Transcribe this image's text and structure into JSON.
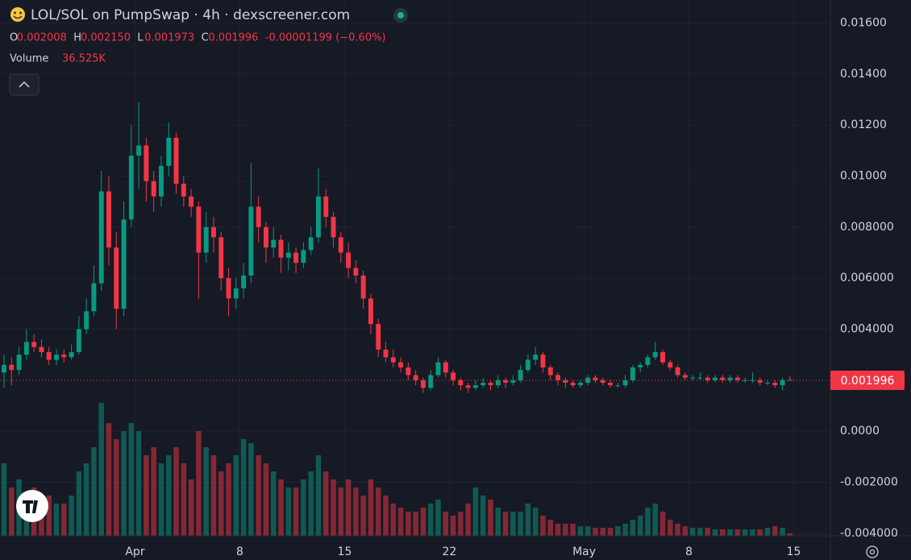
{
  "chart_data": {
    "type": "candlestick",
    "title": "LOL/SOL on PumpSwap · 4h · dexscreener.com",
    "ohlc_letters": [
      "O",
      "H",
      "L",
      "C"
    ],
    "ohlc_labels": [
      "0.002008",
      "0.002150",
      "0.001973",
      "0.001996"
    ],
    "change_label": "-0.00001199 (−0.60%)",
    "volume_title": "Volume",
    "volume_label": "36.525K",
    "up_color": "#089981",
    "down_color": "#f23645",
    "ylim": [
      -0.0041,
      0.0169
    ],
    "yticks": [
      {
        "value": 0.016,
        "label": "0.01600"
      },
      {
        "value": 0.014,
        "label": "0.01400"
      },
      {
        "value": 0.012,
        "label": "0.01200"
      },
      {
        "value": 0.01,
        "label": "0.01000"
      },
      {
        "value": 0.008,
        "label": "0.008000"
      },
      {
        "value": 0.006,
        "label": "0.006000"
      },
      {
        "value": 0.004,
        "label": "0.004000"
      },
      {
        "value": 0,
        "label": "0.0000"
      },
      {
        "value": -0.002,
        "label": "-0.002000"
      },
      {
        "value": -0.004,
        "label": "-0.004000"
      }
    ],
    "xlim": [
      -0.54,
      110.4
    ],
    "xticks": [
      {
        "value": 17.5,
        "label": "Apr"
      },
      {
        "value": 31.5,
        "label": "8"
      },
      {
        "value": 45.5,
        "label": "15"
      },
      {
        "value": 59.5,
        "label": "22"
      },
      {
        "value": 77.5,
        "label": "May"
      },
      {
        "value": 91.5,
        "label": "8"
      },
      {
        "value": 105.5,
        "label": "15"
      }
    ],
    "grid": true,
    "ohlc": [
      [
        0.0023,
        0.003,
        0.0017,
        0.0026
      ],
      [
        0.0026,
        0.0029,
        0.0018,
        0.0024
      ],
      [
        0.0024,
        0.0033,
        0.0022,
        0.003
      ],
      [
        0.003,
        0.004,
        0.0028,
        0.0035
      ],
      [
        0.0035,
        0.0038,
        0.0031,
        0.0033
      ],
      [
        0.0033,
        0.0036,
        0.0029,
        0.0031
      ],
      [
        0.0031,
        0.0033,
        0.0026,
        0.0028
      ],
      [
        0.0028,
        0.0032,
        0.0026,
        0.003
      ],
      [
        0.003,
        0.0032,
        0.0027,
        0.0029
      ],
      [
        0.0029,
        0.0034,
        0.0028,
        0.0031
      ],
      [
        0.0031,
        0.0045,
        0.003,
        0.004
      ],
      [
        0.004,
        0.0052,
        0.0038,
        0.0047
      ],
      [
        0.0047,
        0.0065,
        0.0045,
        0.0058
      ],
      [
        0.0058,
        0.0102,
        0.0055,
        0.0094
      ],
      [
        0.0094,
        0.01,
        0.0065,
        0.0072
      ],
      [
        0.0072,
        0.0078,
        0.004,
        0.0048
      ],
      [
        0.0048,
        0.009,
        0.0045,
        0.0083
      ],
      [
        0.0083,
        0.012,
        0.008,
        0.0108
      ],
      [
        0.0108,
        0.0129,
        0.0095,
        0.0112
      ],
      [
        0.0112,
        0.0115,
        0.009,
        0.0098
      ],
      [
        0.0098,
        0.0102,
        0.0086,
        0.0092
      ],
      [
        0.0092,
        0.0108,
        0.0088,
        0.0104
      ],
      [
        0.0104,
        0.0121,
        0.01,
        0.0115
      ],
      [
        0.0115,
        0.0117,
        0.0093,
        0.0097
      ],
      [
        0.0097,
        0.01,
        0.0088,
        0.0092
      ],
      [
        0.0092,
        0.0095,
        0.0084,
        0.0088
      ],
      [
        0.0088,
        0.009,
        0.0052,
        0.007
      ],
      [
        0.007,
        0.0086,
        0.0066,
        0.008
      ],
      [
        0.008,
        0.0084,
        0.007,
        0.0076
      ],
      [
        0.0076,
        0.0078,
        0.0055,
        0.006
      ],
      [
        0.006,
        0.0064,
        0.0045,
        0.0052
      ],
      [
        0.0052,
        0.006,
        0.0048,
        0.0056
      ],
      [
        0.0056,
        0.0066,
        0.0052,
        0.0061
      ],
      [
        0.0061,
        0.0105,
        0.0058,
        0.0088
      ],
      [
        0.0088,
        0.0092,
        0.0074,
        0.008
      ],
      [
        0.008,
        0.0082,
        0.0066,
        0.0072
      ],
      [
        0.0072,
        0.008,
        0.0068,
        0.0075
      ],
      [
        0.0075,
        0.0077,
        0.0062,
        0.0068
      ],
      [
        0.0068,
        0.0074,
        0.0063,
        0.007
      ],
      [
        0.007,
        0.0072,
        0.0062,
        0.0066
      ],
      [
        0.0066,
        0.0074,
        0.0064,
        0.0071
      ],
      [
        0.0071,
        0.008,
        0.0069,
        0.0076
      ],
      [
        0.0076,
        0.0103,
        0.0074,
        0.0092
      ],
      [
        0.0092,
        0.0095,
        0.008,
        0.0084
      ],
      [
        0.0084,
        0.0086,
        0.0072,
        0.0076
      ],
      [
        0.0076,
        0.0078,
        0.0066,
        0.007
      ],
      [
        0.007,
        0.0074,
        0.006,
        0.0064
      ],
      [
        0.0064,
        0.0067,
        0.0058,
        0.0061
      ],
      [
        0.0061,
        0.0063,
        0.0048,
        0.0052
      ],
      [
        0.0052,
        0.0054,
        0.0038,
        0.0042
      ],
      [
        0.0042,
        0.0044,
        0.0029,
        0.0032
      ],
      [
        0.0032,
        0.0035,
        0.0027,
        0.0029
      ],
      [
        0.0029,
        0.0032,
        0.0025,
        0.0027
      ],
      [
        0.0027,
        0.0029,
        0.0023,
        0.0025
      ],
      [
        0.0025,
        0.0027,
        0.002,
        0.0022
      ],
      [
        0.0022,
        0.0024,
        0.0018,
        0.002
      ],
      [
        0.002,
        0.0021,
        0.0015,
        0.0017
      ],
      [
        0.0017,
        0.0024,
        0.0016,
        0.0022
      ],
      [
        0.0022,
        0.0029,
        0.0021,
        0.0027
      ],
      [
        0.0027,
        0.0028,
        0.0021,
        0.0023
      ],
      [
        0.0023,
        0.0024,
        0.0018,
        0.002
      ],
      [
        0.002,
        0.0021,
        0.0016,
        0.0018
      ],
      [
        0.0018,
        0.0019,
        0.0015,
        0.0017
      ],
      [
        0.0017,
        0.002,
        0.0016,
        0.0018
      ],
      [
        0.0018,
        0.0021,
        0.0017,
        0.0019
      ],
      [
        0.0019,
        0.002,
        0.0016,
        0.0018
      ],
      [
        0.0018,
        0.0022,
        0.0017,
        0.002
      ],
      [
        0.002,
        0.0021,
        0.0017,
        0.0019
      ],
      [
        0.0019,
        0.0022,
        0.0018,
        0.002
      ],
      [
        0.002,
        0.0026,
        0.0019,
        0.0024
      ],
      [
        0.0024,
        0.003,
        0.0023,
        0.0028
      ],
      [
        0.0028,
        0.0033,
        0.0026,
        0.003
      ],
      [
        0.003,
        0.0031,
        0.0023,
        0.0025
      ],
      [
        0.0025,
        0.0026,
        0.002,
        0.0022
      ],
      [
        0.0022,
        0.0023,
        0.0018,
        0.002
      ],
      [
        0.002,
        0.0021,
        0.0017,
        0.0019
      ],
      [
        0.0019,
        0.002,
        0.0017,
        0.0018
      ],
      [
        0.0018,
        0.002,
        0.0017,
        0.0019
      ],
      [
        0.0019,
        0.0022,
        0.0018,
        0.0021
      ],
      [
        0.0021,
        0.0022,
        0.0019,
        0.002
      ],
      [
        0.002,
        0.0021,
        0.0018,
        0.0019
      ],
      [
        0.0019,
        0.002,
        0.0017,
        0.0018
      ],
      [
        0.0018,
        0.0019,
        0.0017,
        0.0018
      ],
      [
        0.0018,
        0.0022,
        0.0017,
        0.002
      ],
      [
        0.002,
        0.0026,
        0.0019,
        0.0025
      ],
      [
        0.0025,
        0.0027,
        0.0023,
        0.0026
      ],
      [
        0.0026,
        0.003,
        0.0025,
        0.0029
      ],
      [
        0.0029,
        0.0035,
        0.0028,
        0.0031
      ],
      [
        0.0031,
        0.0032,
        0.0026,
        0.0027
      ],
      [
        0.0027,
        0.0028,
        0.0024,
        0.0025
      ],
      [
        0.0025,
        0.0026,
        0.0021,
        0.0022
      ],
      [
        0.0022,
        0.0023,
        0.002,
        0.0021
      ],
      [
        0.0021,
        0.0022,
        0.002,
        0.0021
      ],
      [
        0.0021,
        0.0023,
        0.002,
        0.0021
      ],
      [
        0.0021,
        0.0022,
        0.0019,
        0.002
      ],
      [
        0.002,
        0.0022,
        0.0019,
        0.0021
      ],
      [
        0.0021,
        0.0022,
        0.0019,
        0.002
      ],
      [
        0.002,
        0.0022,
        0.0019,
        0.0021
      ],
      [
        0.0021,
        0.0022,
        0.0019,
        0.002
      ],
      [
        0.002,
        0.0021,
        0.0019,
        0.002
      ],
      [
        0.002,
        0.0023,
        0.0019,
        0.002
      ],
      [
        0.002,
        0.0021,
        0.0018,
        0.0019
      ],
      [
        0.0019,
        0.002,
        0.0018,
        0.0019
      ],
      [
        0.0019,
        0.002,
        0.0017,
        0.0018
      ],
      [
        0.0018,
        0.0021,
        0.0016,
        0.002008
      ],
      [
        0.002008,
        0.00215,
        0.001973,
        0.001996
      ]
    ],
    "volume": [
      1080000,
      720000,
      840000,
      600000,
      720000,
      480000,
      600000,
      480000,
      480000,
      600000,
      960000,
      1080000,
      1320000,
      1980000,
      1680000,
      1440000,
      1560000,
      1680000,
      1560000,
      1200000,
      1320000,
      1080000,
      1200000,
      1320000,
      1080000,
      840000,
      1560000,
      1320000,
      1200000,
      960000,
      1080000,
      1200000,
      1440000,
      1380000,
      1200000,
      1080000,
      960000,
      840000,
      720000,
      720000,
      840000,
      960000,
      1200000,
      960000,
      840000,
      720000,
      840000,
      720000,
      600000,
      840000,
      720000,
      600000,
      480000,
      420000,
      360000,
      360000,
      420000,
      480000,
      540000,
      360000,
      300000,
      360000,
      480000,
      720000,
      600000,
      540000,
      420000,
      360000,
      360000,
      360000,
      480000,
      420000,
      300000,
      240000,
      180000,
      180000,
      180000,
      144000,
      144000,
      120000,
      120000,
      120000,
      144000,
      180000,
      240000,
      300000,
      420000,
      480000,
      360000,
      240000,
      180000,
      144000,
      120000,
      120000,
      120000,
      96000,
      96000,
      96000,
      96000,
      96000,
      96000,
      96000,
      120000,
      144000,
      120000,
      36525
    ]
  }
}
